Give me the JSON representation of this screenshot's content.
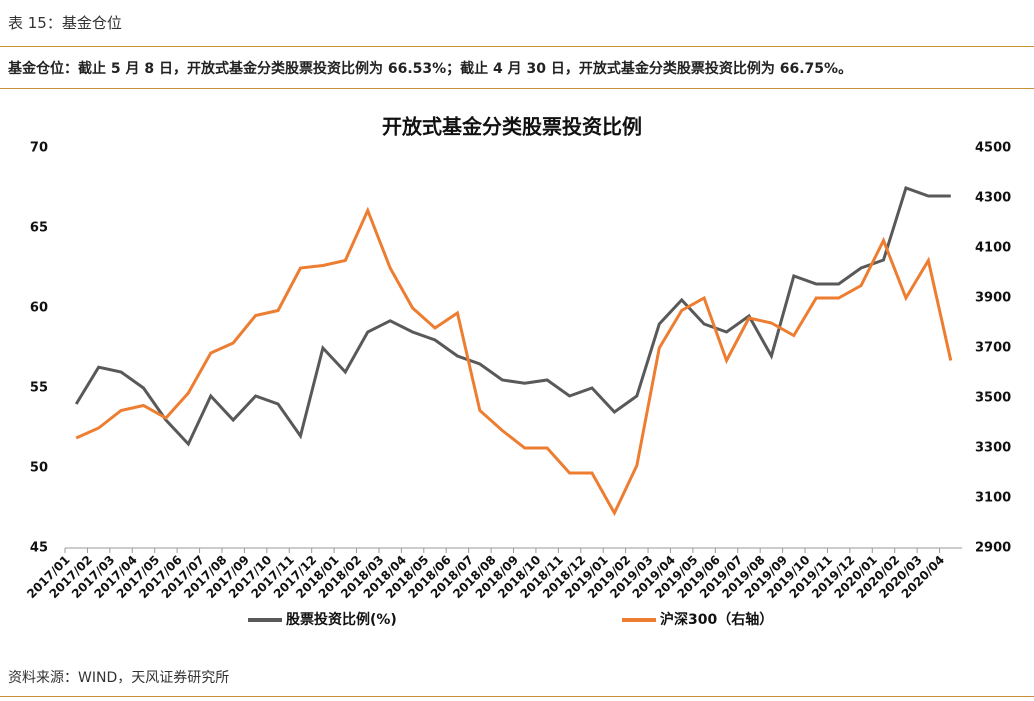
{
  "header": {
    "title": "表 15：基金仓位"
  },
  "summary": "基金仓位：截止 5 月 8 日，开放式基金分类股票投资比例为 66.53%；截止 4 月 30 日，开放式基金分类股票投资比例为 66.75%。",
  "source": "资料来源：WIND，天风证券研究所",
  "chart_data": {
    "type": "line",
    "title": "开放式基金分类股票投资比例",
    "categories": [
      "2017/01",
      "2017/02",
      "2017/03",
      "2017/04",
      "2017/05",
      "2017/06",
      "2017/07",
      "2017/08",
      "2017/09",
      "2017/10",
      "2017/11",
      "2017/12",
      "2018/01",
      "2018/02",
      "2018/03",
      "2018/04",
      "2018/05",
      "2018/06",
      "2018/07",
      "2018/08",
      "2018/09",
      "2018/10",
      "2018/11",
      "2018/12",
      "2019/01",
      "2019/02",
      "2019/03",
      "2019/04",
      "2019/05",
      "2019/06",
      "2019/07",
      "2019/08",
      "2019/09",
      "2019/10",
      "2019/11",
      "2019/12",
      "2020/01",
      "2020/02",
      "2020/03",
      "2020/04"
    ],
    "series": [
      {
        "name": "股票投资比例(%)",
        "color": "#595959",
        "values": [
          54,
          56.3,
          56,
          55,
          53,
          51.5,
          54.5,
          53,
          54.5,
          54,
          52,
          57.5,
          56,
          58.5,
          59.2,
          58.5,
          58,
          57,
          56.5,
          55.5,
          55.3,
          55.5,
          54.5,
          55,
          53.5,
          54.5,
          59,
          60.5,
          59,
          58.5,
          59.5,
          57,
          62,
          61.5,
          61.5,
          62.5,
          63,
          67.5,
          67,
          67
        ]
      },
      {
        "name": "沪深300（右轴）",
        "color": "#ed7d31",
        "axis": "y2",
        "values": [
          3340,
          3380,
          3450,
          3470,
          3420,
          3520,
          3680,
          3720,
          3830,
          3850,
          4020,
          4030,
          4050,
          4250,
          4020,
          3860,
          3780,
          3840,
          3450,
          3370,
          3300,
          3300,
          3200,
          3200,
          3040,
          3230,
          3700,
          3850,
          3900,
          3650,
          3820,
          3800,
          3750,
          3900,
          3900,
          3950,
          4130,
          3900,
          4050,
          3650
        ]
      }
    ],
    "ylim": [
      45,
      70
    ],
    "yticks": [
      45,
      50,
      55,
      60,
      65,
      70
    ],
    "y2lim": [
      2900,
      4500
    ],
    "y2ticks": [
      2900,
      3100,
      3300,
      3500,
      3700,
      3900,
      4100,
      4300,
      4500
    ]
  }
}
